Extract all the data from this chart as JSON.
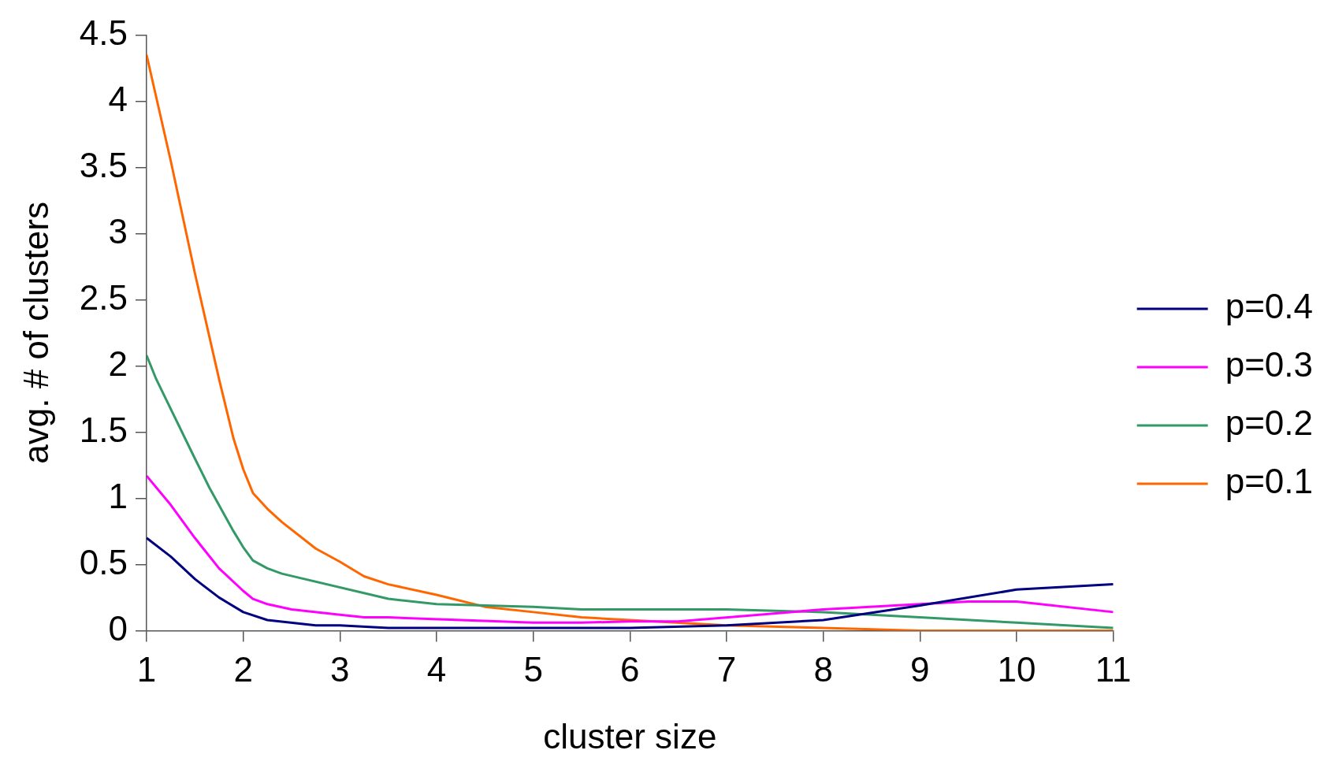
{
  "chart_data": {
    "type": "line",
    "xlabel": "cluster size",
    "ylabel": "avg. # of clusters",
    "xlim": [
      1,
      11
    ],
    "xticks": [
      1,
      2,
      3,
      4,
      5,
      6,
      7,
      8,
      9,
      10,
      11
    ],
    "ylim": [
      0,
      4.5
    ],
    "yticks": [
      0,
      0.5,
      1,
      1.5,
      2,
      2.5,
      3,
      3.5,
      4,
      4.5
    ],
    "grid": false,
    "legend": "right",
    "marker": "none",
    "line_style": "solid",
    "series": [
      {
        "name": "p=0.4",
        "color": "#000080",
        "x": [
          1,
          1.25,
          1.5,
          1.75,
          2,
          2.25,
          2.75,
          3,
          3.5,
          6,
          7,
          8,
          9,
          10,
          11
        ],
        "values": [
          0.7,
          0.56,
          0.39,
          0.25,
          0.14,
          0.08,
          0.04,
          0.04,
          0.02,
          0.02,
          0.04,
          0.08,
          0.19,
          0.31,
          0.35
        ]
      },
      {
        "name": "p=0.3",
        "color": "#ff00ff",
        "x": [
          1,
          1.25,
          1.5,
          1.75,
          2,
          2.1,
          2.25,
          2.5,
          3,
          3.25,
          3.5,
          5,
          5.5,
          6,
          6.5,
          8,
          9,
          9.5,
          10,
          11
        ],
        "values": [
          1.17,
          0.95,
          0.7,
          0.47,
          0.3,
          0.24,
          0.2,
          0.16,
          0.12,
          0.1,
          0.1,
          0.06,
          0.06,
          0.07,
          0.07,
          0.16,
          0.2,
          0.22,
          0.22,
          0.14
        ]
      },
      {
        "name": "p=0.2",
        "color": "#339966",
        "x": [
          1,
          1.1,
          1.5,
          1.65,
          1.9,
          2,
          2.1,
          2.25,
          2.4,
          3.5,
          4,
          5,
          5.5,
          7,
          8,
          9,
          10,
          11
        ],
        "values": [
          2.08,
          1.9,
          1.3,
          1.08,
          0.75,
          0.63,
          0.53,
          0.47,
          0.43,
          0.24,
          0.2,
          0.18,
          0.16,
          0.16,
          0.14,
          0.1,
          0.06,
          0.02
        ]
      },
      {
        "name": "p=0.1",
        "color": "#ff6600",
        "x": [
          1,
          1.25,
          1.5,
          1.75,
          1.9,
          2,
          2.1,
          2.25,
          2.4,
          2.75,
          3,
          3.25,
          3.5,
          4,
          4.5,
          5,
          5.5,
          6,
          7,
          8,
          9,
          10,
          11
        ],
        "values": [
          4.35,
          3.55,
          2.7,
          1.9,
          1.45,
          1.22,
          1.04,
          0.92,
          0.82,
          0.62,
          0.52,
          0.41,
          0.35,
          0.27,
          0.18,
          0.14,
          0.1,
          0.08,
          0.04,
          0.02,
          0,
          0,
          0
        ]
      }
    ]
  }
}
